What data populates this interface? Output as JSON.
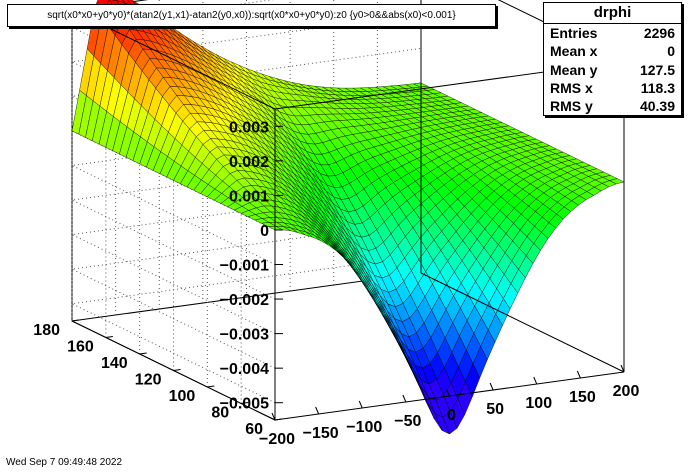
{
  "chart_data": {
    "type": "surface",
    "title": "sqrt(x0*x0+y0*y0)*(atan2(y1,x1)-atan2(y0,x0)):sqrt(x0*x0+y0*y0):z0 {y0>0&&abs(x0)<0.001}",
    "x_ticks": [
      "−200",
      "−150",
      "−100",
      "−50",
      "0",
      "50",
      "100",
      "150",
      "200"
    ],
    "y_ticks": [
      "60",
      "80",
      "100",
      "120",
      "140",
      "160",
      "180"
    ],
    "z_ticks": [
      "0.003",
      "0.002",
      "0.001",
      "0",
      "−0.001",
      "−0.002",
      "−0.003",
      "−0.004",
      "−0.005"
    ],
    "xlim": [
      -200,
      200
    ],
    "ylim": [
      60,
      180
    ],
    "zlim": [
      -0.0055,
      0.0035
    ],
    "colormap": "rainbow",
    "peak": {
      "x": -190,
      "y": 180,
      "z": 0.0036
    },
    "trough": {
      "x": 0,
      "y": 60,
      "z": -0.0055
    }
  },
  "stats": {
    "title": "drphi",
    "rows": [
      {
        "label": "Entries",
        "value": "2296"
      },
      {
        "label": "Mean x",
        "value": "0"
      },
      {
        "label": "Mean y",
        "value": "127.5"
      },
      {
        "label": "RMS x",
        "value": "118.3"
      },
      {
        "label": "RMS y",
        "value": "40.39"
      }
    ]
  },
  "footer": "Wed Sep  7 09:49:48 2022"
}
